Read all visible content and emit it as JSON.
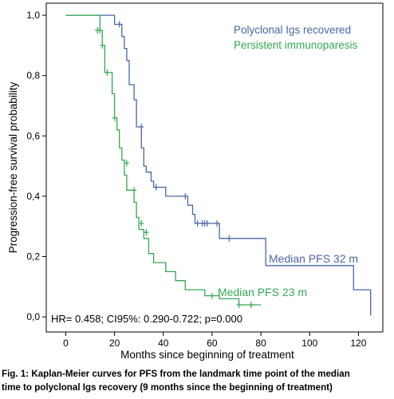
{
  "chart_data": {
    "type": "line",
    "subtype": "kaplan-meier step",
    "xlabel": "Months  since beginning of treatment",
    "ylabel": "Progression-free survival probability",
    "xlim": [
      -8,
      130
    ],
    "ylim": [
      -0.05,
      1.04
    ],
    "x_ticks": [
      "0",
      "20",
      "40",
      "60",
      "80",
      "100",
      "120"
    ],
    "x_tick_values": [
      0,
      20,
      40,
      60,
      80,
      100,
      120
    ],
    "y_ticks": [
      "0,0",
      "0,2",
      "0,4",
      "0,6",
      "0,8",
      "1,0"
    ],
    "y_tick_values": [
      0,
      0.2,
      0.4,
      0.6,
      0.8,
      1.0
    ],
    "grid": false,
    "legend_position": "top-right",
    "series": [
      {
        "name": "Polyclonal Igs recovered",
        "color": "#4a66a8",
        "steps": [
          [
            0,
            1.0
          ],
          [
            20,
            1.0
          ],
          [
            20,
            0.97
          ],
          [
            23,
            0.97
          ],
          [
            23,
            0.93
          ],
          [
            24,
            0.93
          ],
          [
            24,
            0.89
          ],
          [
            25,
            0.89
          ],
          [
            25,
            0.85
          ],
          [
            26,
            0.85
          ],
          [
            26,
            0.77
          ],
          [
            28,
            0.77
          ],
          [
            28,
            0.72
          ],
          [
            29,
            0.72
          ],
          [
            29,
            0.63
          ],
          [
            31,
            0.63
          ],
          [
            31,
            0.56
          ],
          [
            32,
            0.56
          ],
          [
            32,
            0.5
          ],
          [
            33,
            0.5
          ],
          [
            33,
            0.48
          ],
          [
            35,
            0.48
          ],
          [
            35,
            0.45
          ],
          [
            36,
            0.45
          ],
          [
            36,
            0.43
          ],
          [
            41,
            0.43
          ],
          [
            41,
            0.4
          ],
          [
            50,
            0.4
          ],
          [
            50,
            0.37
          ],
          [
            52,
            0.37
          ],
          [
            52,
            0.34
          ],
          [
            53,
            0.34
          ],
          [
            53,
            0.31
          ],
          [
            63,
            0.31
          ],
          [
            63,
            0.26
          ],
          [
            82,
            0.26
          ],
          [
            82,
            0.17
          ],
          [
            118,
            0.17
          ],
          [
            118,
            0.09
          ],
          [
            125,
            0.09
          ],
          [
            125,
            0.005
          ]
        ],
        "censored": [
          [
            22,
            0.97
          ],
          [
            31,
            0.63
          ],
          [
            37,
            0.43
          ],
          [
            49,
            0.4
          ],
          [
            54,
            0.31
          ],
          [
            56,
            0.31
          ],
          [
            57,
            0.31
          ],
          [
            58,
            0.31
          ],
          [
            62,
            0.31
          ],
          [
            67,
            0.26
          ]
        ]
      },
      {
        "name": "Persistent immunoparesis",
        "color": "#34a853",
        "steps": [
          [
            0,
            1.0
          ],
          [
            14,
            1.0
          ],
          [
            14,
            0.95
          ],
          [
            15,
            0.95
          ],
          [
            15,
            0.9
          ],
          [
            16,
            0.9
          ],
          [
            16,
            0.81
          ],
          [
            19,
            0.81
          ],
          [
            19,
            0.74
          ],
          [
            20,
            0.74
          ],
          [
            20,
            0.66
          ],
          [
            21,
            0.66
          ],
          [
            21,
            0.62
          ],
          [
            22,
            0.62
          ],
          [
            22,
            0.56
          ],
          [
            23,
            0.56
          ],
          [
            23,
            0.52
          ],
          [
            24,
            0.52
          ],
          [
            24,
            0.47
          ],
          [
            25,
            0.47
          ],
          [
            25,
            0.42
          ],
          [
            28,
            0.42
          ],
          [
            28,
            0.38
          ],
          [
            29,
            0.38
          ],
          [
            29,
            0.33
          ],
          [
            30,
            0.33
          ],
          [
            30,
            0.29
          ],
          [
            32,
            0.29
          ],
          [
            32,
            0.26
          ],
          [
            34,
            0.26
          ],
          [
            34,
            0.21
          ],
          [
            36,
            0.21
          ],
          [
            36,
            0.18
          ],
          [
            41,
            0.18
          ],
          [
            41,
            0.15
          ],
          [
            45,
            0.15
          ],
          [
            45,
            0.12
          ],
          [
            49,
            0.12
          ],
          [
            49,
            0.09
          ],
          [
            57,
            0.09
          ],
          [
            57,
            0.07
          ],
          [
            63,
            0.07
          ],
          [
            63,
            0.06
          ],
          [
            71,
            0.06
          ],
          [
            71,
            0.04
          ],
          [
            80,
            0.04
          ]
        ],
        "censored": [
          [
            13,
            0.95
          ],
          [
            14,
            0.95
          ],
          [
            15,
            0.9
          ],
          [
            17,
            0.81
          ],
          [
            20,
            0.66
          ],
          [
            25,
            0.51
          ],
          [
            28,
            0.42
          ],
          [
            31,
            0.31
          ],
          [
            33,
            0.28
          ],
          [
            60,
            0.07
          ],
          [
            71,
            0.04
          ],
          [
            76,
            0.04
          ]
        ]
      }
    ],
    "annotations": [
      {
        "text": "Median PFS 32 m",
        "series": 0
      },
      {
        "text": "Median PFS 23 m",
        "series": 1
      },
      {
        "text": "HR= 0.458; CI95%: 0.290-0.722; p=0.000"
      }
    ]
  },
  "caption": {
    "line1": "Fig. 1: Kaplan-Meier curves for PFS from the landmark time point of the median",
    "line2": "time to polyclonal Igs recovery (9 months since the beginning of treatment)"
  }
}
